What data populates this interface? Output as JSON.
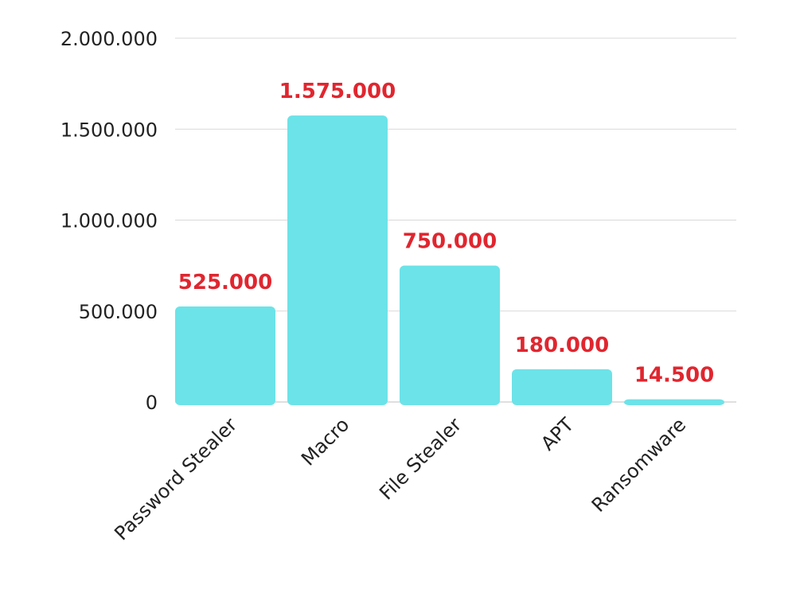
{
  "chart_data": {
    "type": "bar",
    "categories": [
      "Password Stealer",
      "Macro",
      "File Stealer",
      "APT",
      "Ransomware"
    ],
    "values": [
      525000,
      1575000,
      750000,
      180000,
      14500
    ],
    "data_labels": [
      "525.000",
      "1.575.000",
      "750.000",
      "180.000",
      "14.500"
    ],
    "y_ticks": [
      0,
      500000,
      1000000,
      1500000,
      2000000
    ],
    "y_tick_labels": [
      "0",
      "500.000",
      "1.000.000",
      "1.500.000",
      "2.000.000"
    ],
    "ylim": [
      0,
      2000000
    ],
    "title": "",
    "xlabel": "",
    "ylabel": "",
    "grid": true,
    "legend": "none",
    "colors": {
      "bar": "#6ce3e8",
      "data_label": "#e0262f",
      "grid": "#d9d9d9",
      "text": "#222222"
    }
  }
}
